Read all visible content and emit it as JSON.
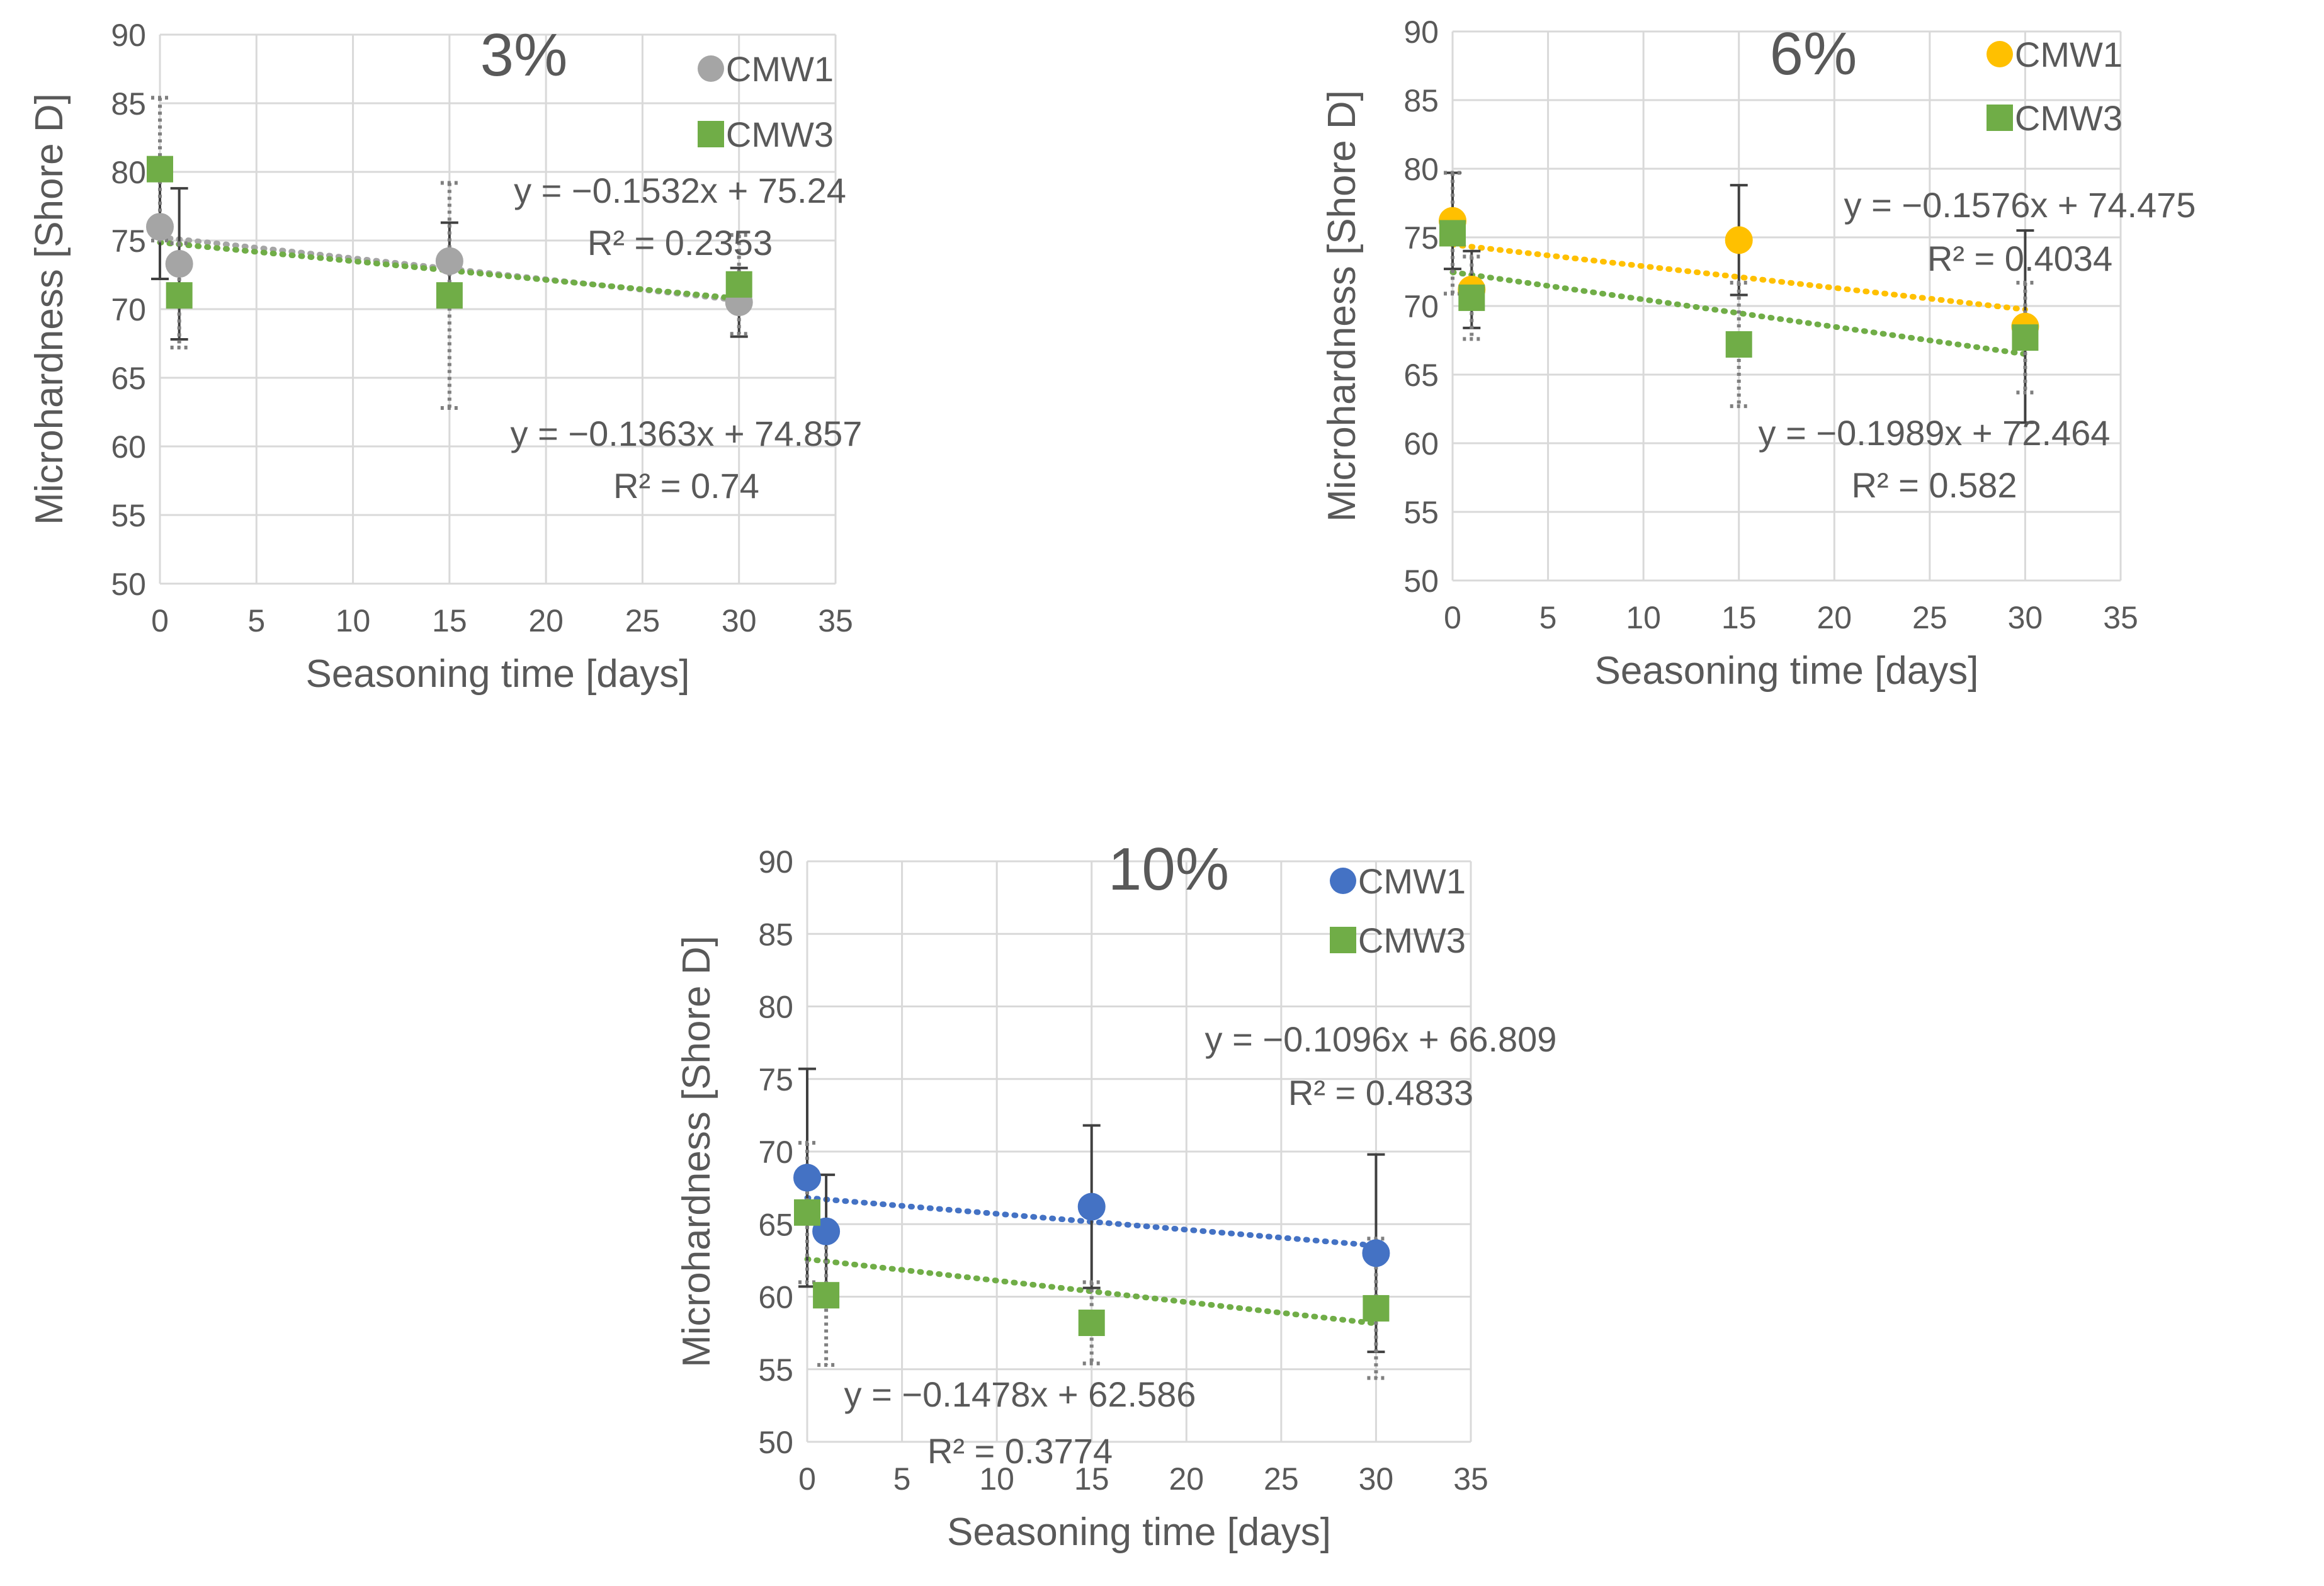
{
  "chart_data": [
    {
      "type": "scatter",
      "title": "3%",
      "xlabel": "Seasoning time [days]",
      "ylabel": "Microhardness [Shore D]",
      "xlim": [
        0,
        35
      ],
      "ylim": [
        50,
        90
      ],
      "xticks": [
        0,
        5,
        10,
        15,
        20,
        25,
        30,
        35
      ],
      "yticks": [
        50,
        55,
        60,
        65,
        70,
        75,
        80,
        85,
        90
      ],
      "grid": true,
      "legend_position": "top-right",
      "series": [
        {
          "name": "CMW1",
          "color": "#a5a5a5",
          "marker": "circle",
          "x": [
            0,
            1,
            15,
            30
          ],
          "y": [
            76.0,
            73.3,
            73.5,
            70.5
          ],
          "error": [
            3.8,
            5.5,
            2.8,
            2.5
          ],
          "error_style": "solid",
          "trendline": {
            "slope": -0.1532,
            "intercept": 75.24,
            "equation": "y = −0.1532x + 75.24",
            "r2": "R² = 0.2353"
          }
        },
        {
          "name": "CMW3",
          "color": "#70ad47",
          "marker": "square",
          "x": [
            0,
            1,
            15,
            30
          ],
          "y": [
            80.2,
            71.0,
            71.0,
            71.8
          ],
          "error": [
            5.2,
            3.8,
            8.2,
            3.6
          ],
          "error_style": "dotted",
          "trendline": {
            "slope": -0.1363,
            "intercept": 74.857,
            "equation": "y = −0.1363x + 74.857",
            "r2": "R² = 0.74"
          }
        }
      ]
    },
    {
      "type": "scatter",
      "title": "6%",
      "xlabel": "Seasoning time [days]",
      "ylabel": "Microhardness [Shore D]",
      "xlim": [
        0,
        35
      ],
      "ylim": [
        50,
        90
      ],
      "xticks": [
        0,
        5,
        10,
        15,
        20,
        25,
        30,
        35
      ],
      "yticks": [
        50,
        55,
        60,
        65,
        70,
        75,
        80,
        85,
        90
      ],
      "grid": true,
      "legend_position": "top-right",
      "series": [
        {
          "name": "CMW1",
          "color": "#ffc000",
          "marker": "circle",
          "x": [
            0,
            1,
            15,
            30
          ],
          "y": [
            76.2,
            71.2,
            74.8,
            68.5
          ],
          "error": [
            3.5,
            2.8,
            4.0,
            7.0
          ],
          "error_style": "solid",
          "trendline": {
            "slope": -0.1576,
            "intercept": 74.475,
            "equation": "y = −0.1576x + 74.475",
            "r2": "R² = 0.4034"
          }
        },
        {
          "name": "CMW3",
          "color": "#70ad47",
          "marker": "square",
          "x": [
            0,
            1,
            15,
            30
          ],
          "y": [
            75.3,
            70.6,
            67.2,
            67.7
          ],
          "error": [
            4.4,
            3.0,
            4.5,
            4.0
          ],
          "error_style": "dotted",
          "trendline": {
            "slope": -0.1989,
            "intercept": 72.464,
            "equation": "y = −0.1989x + 72.464",
            "r2": "R² = 0.582"
          }
        }
      ]
    },
    {
      "type": "scatter",
      "title": "10%",
      "xlabel": "Seasoning time [days]",
      "ylabel": "Microhardness [Shore D]",
      "xlim": [
        0,
        35
      ],
      "ylim": [
        50,
        90
      ],
      "xticks": [
        0,
        5,
        10,
        15,
        20,
        25,
        30,
        35
      ],
      "yticks": [
        50,
        55,
        60,
        65,
        70,
        75,
        80,
        85,
        90
      ],
      "grid": true,
      "legend_position": "top-right",
      "series": [
        {
          "name": "CMW1",
          "color": "#4472c4",
          "marker": "circle",
          "x": [
            0,
            1,
            15,
            30
          ],
          "y": [
            68.2,
            64.5,
            66.2,
            63.0
          ],
          "error": [
            7.5,
            3.9,
            5.6,
            6.8
          ],
          "error_style": "solid",
          "trendline": {
            "slope": -0.1096,
            "intercept": 66.809,
            "equation": "y = −0.1096x + 66.809",
            "r2": "R² = 0.4833"
          }
        },
        {
          "name": "CMW3",
          "color": "#70ad47",
          "marker": "square",
          "x": [
            0,
            1,
            15,
            30
          ],
          "y": [
            65.8,
            60.1,
            58.2,
            59.2
          ],
          "error": [
            4.8,
            4.8,
            2.8,
            4.8
          ],
          "error_style": "dotted",
          "trendline": {
            "slope": -0.1478,
            "intercept": 62.586,
            "equation": "y = −0.1478x + 62.586",
            "r2": "R² = 0.3774"
          }
        }
      ]
    }
  ]
}
